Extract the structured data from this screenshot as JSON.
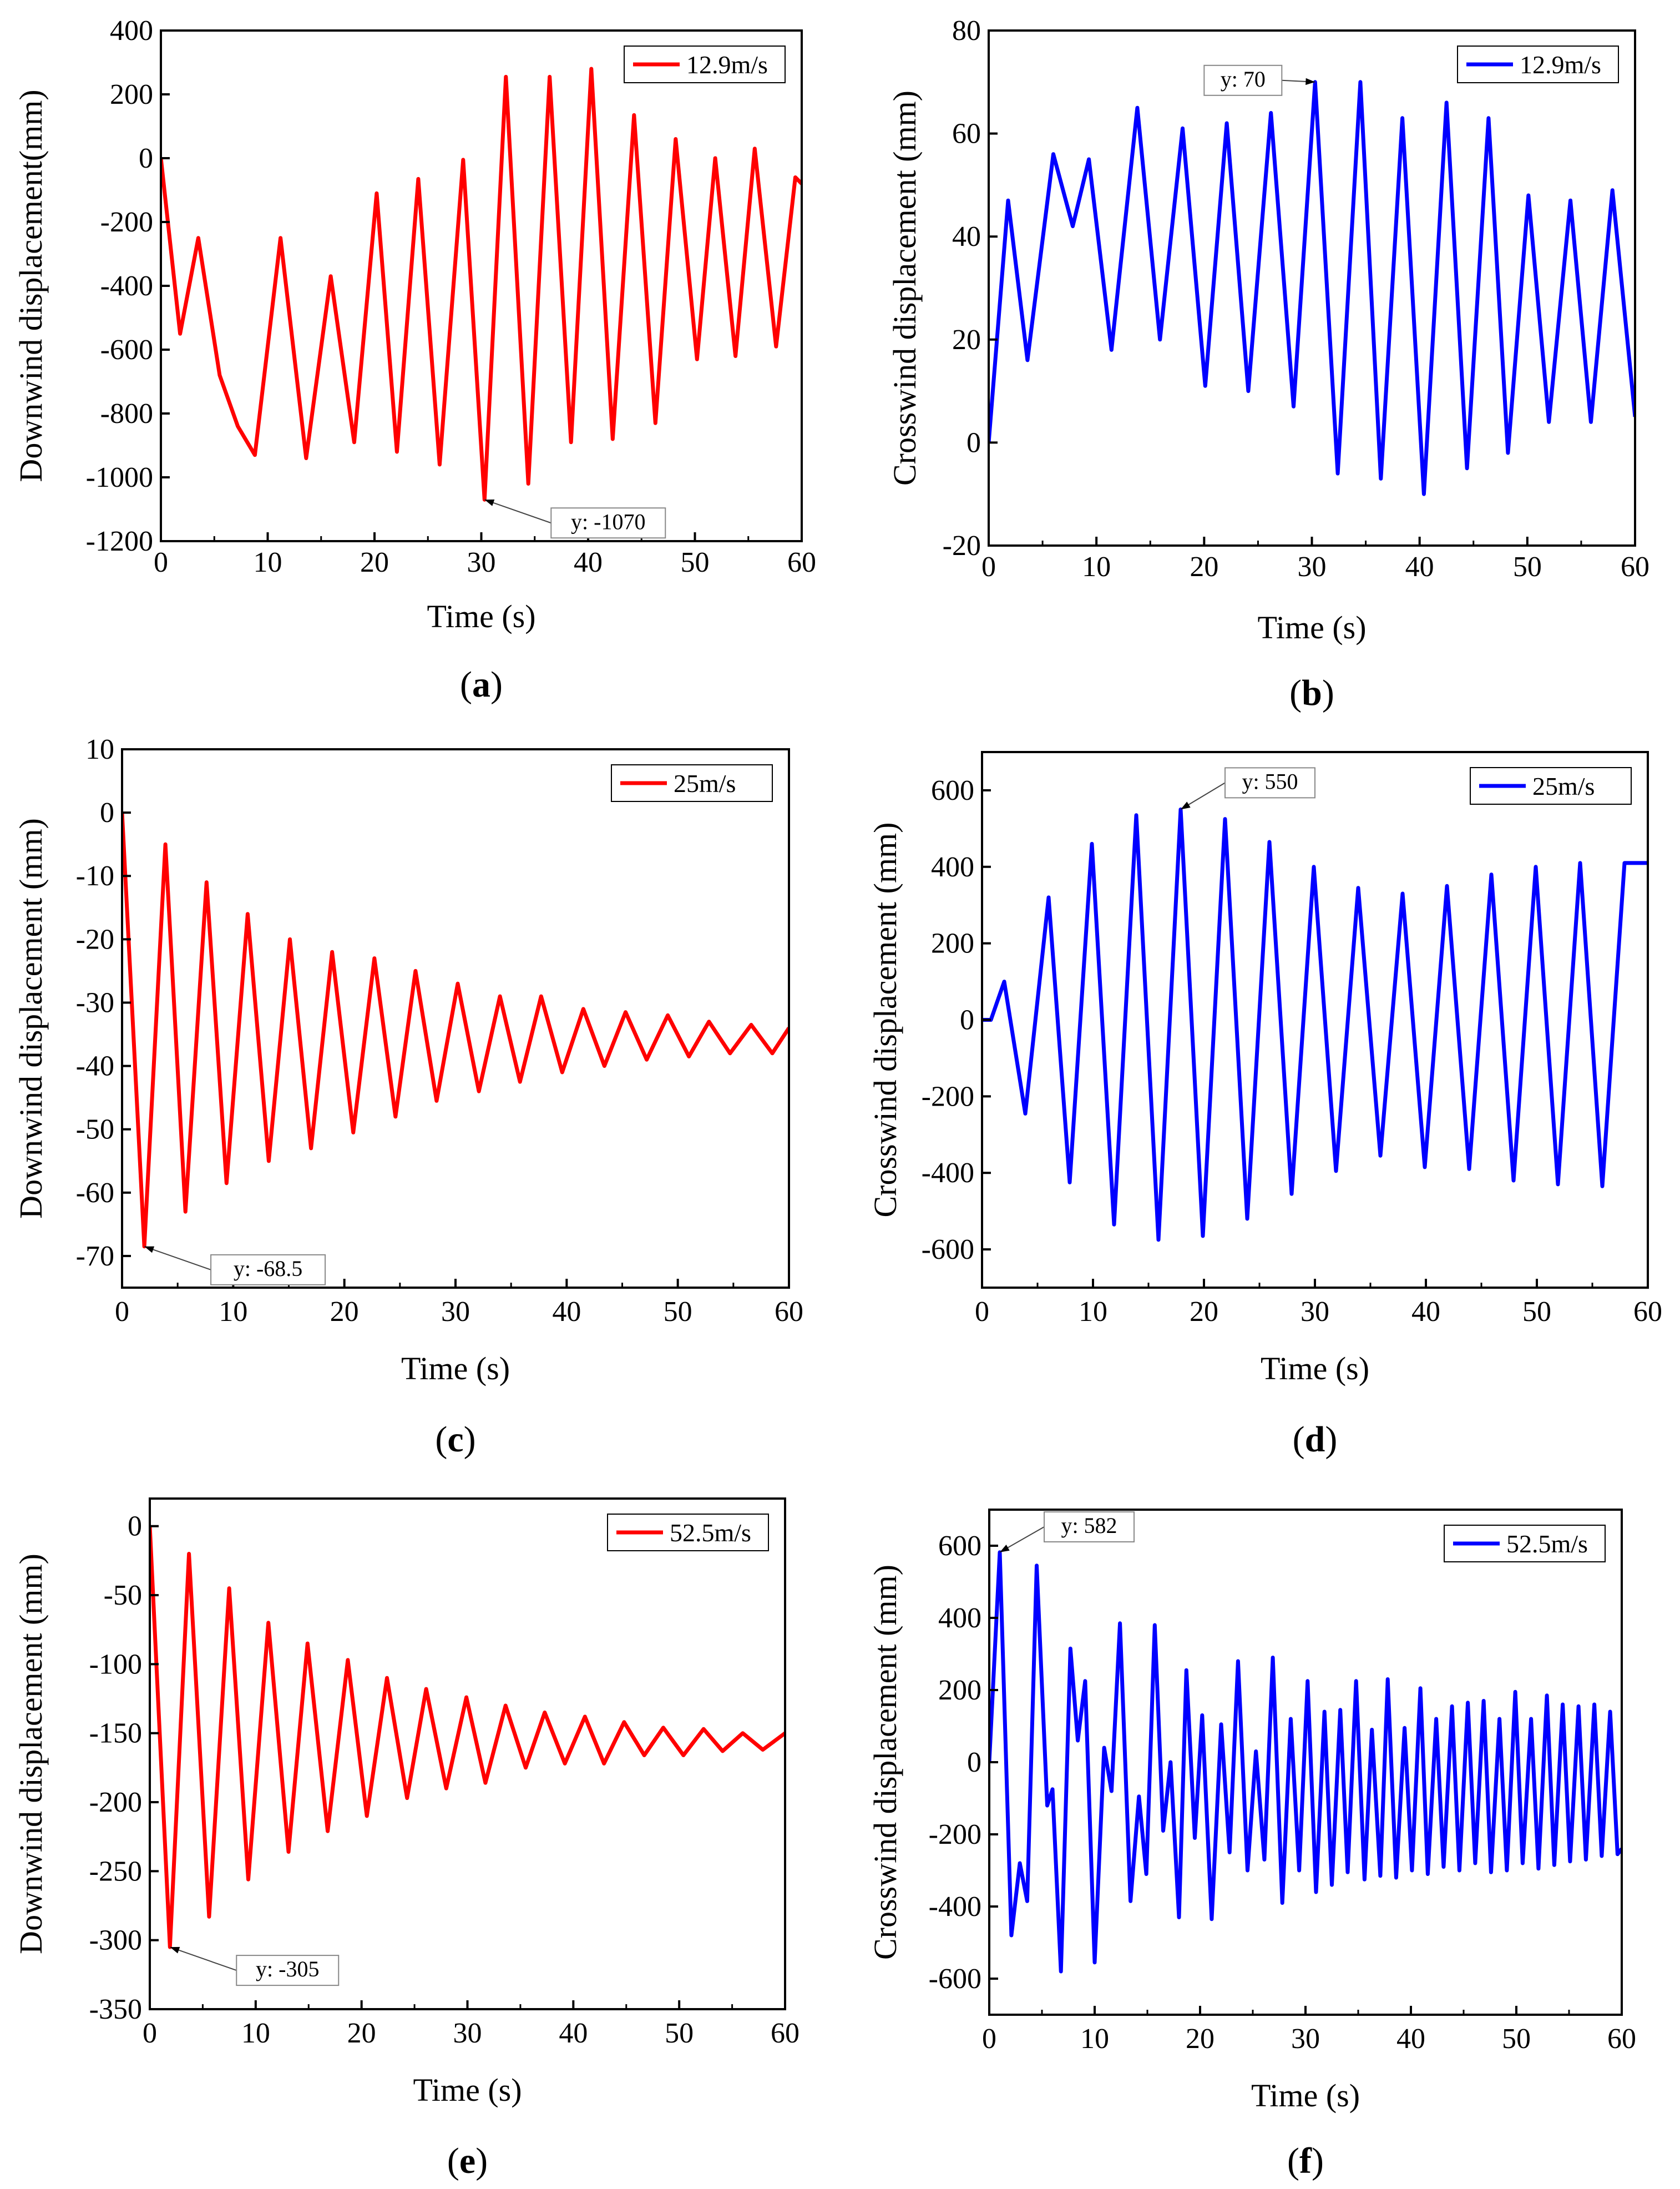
{
  "figure": {
    "caption_prefix": "(",
    "caption_suffix": ")"
  },
  "chart_data": [
    {
      "type": "line",
      "caption": "a",
      "title": "",
      "xlabel": "Time (s)",
      "ylabel": "Downwind displacement(mm)",
      "xlim": [
        0,
        60
      ],
      "ylim": [
        -1200,
        400
      ],
      "xticks": [
        0,
        10,
        20,
        30,
        40,
        50,
        60
      ],
      "yticks": [
        -1200,
        -1000,
        -800,
        -600,
        -400,
        -200,
        0,
        200,
        400
      ],
      "legend": "top-right",
      "grid": false,
      "color": "#ff0000",
      "series": [
        {
          "name": "12.9m/s",
          "x": [
            0,
            1.8,
            3.5,
            5.5,
            7.2,
            8.8,
            11.2,
            13.6,
            15.9,
            18.1,
            20.2,
            22.1,
            24.1,
            26.1,
            28.3,
            30.3,
            32.3,
            34.4,
            36.4,
            38.4,
            40.3,
            42.3,
            44.3,
            46.3,
            48.2,
            50.2,
            51.9,
            53.8,
            55.6,
            57.6,
            59.4,
            60
          ],
          "y": [
            0,
            -550,
            -250,
            -680,
            -840,
            -930,
            -250,
            -940,
            -370,
            -890,
            -110,
            -920,
            -65,
            -960,
            -5,
            -1070,
            255,
            -1020,
            255,
            -890,
            280,
            -880,
            135,
            -830,
            60,
            -630,
            0,
            -620,
            30,
            -590,
            -60,
            -80
          ]
        }
      ],
      "annotations": [
        {
          "text": "y: -1070",
          "x": 30.3,
          "y": -1070,
          "placement": "right-below"
        }
      ]
    },
    {
      "type": "line",
      "caption": "b",
      "title": "",
      "xlabel": "Time (s)",
      "ylabel": "Crosswind displacement (mm)",
      "xlim": [
        0,
        60
      ],
      "ylim": [
        -20,
        80
      ],
      "xticks": [
        0,
        10,
        20,
        30,
        40,
        50,
        60
      ],
      "yticks": [
        -20,
        0,
        20,
        40,
        60,
        80
      ],
      "legend": "top-right",
      "grid": false,
      "color": "#0000ff",
      "series": [
        {
          "name": "12.9m/s",
          "x": [
            0,
            1.8,
            3.6,
            6.0,
            7.8,
            9.3,
            11.4,
            13.8,
            15.9,
            18.0,
            20.1,
            22.1,
            24.1,
            26.2,
            28.3,
            30.3,
            32.4,
            34.5,
            36.4,
            38.4,
            40.4,
            42.5,
            44.4,
            46.4,
            48.2,
            50.1,
            52.0,
            54.0,
            55.9,
            57.9,
            60
          ],
          "y": [
            0,
            47,
            16,
            56,
            42,
            55,
            18,
            65,
            20,
            61,
            11,
            62,
            10,
            64,
            7,
            70,
            -6,
            70,
            -7,
            63,
            -10,
            66,
            -5,
            63,
            -2,
            48,
            4,
            47,
            4,
            49,
            5
          ]
        }
      ],
      "annotations": [
        {
          "text": "y: 70",
          "x": 30.3,
          "y": 70,
          "placement": "left-above"
        }
      ]
    },
    {
      "type": "line",
      "caption": "c",
      "title": "",
      "xlabel": "Time (s)",
      "ylabel": "Downwind displacement (mm)",
      "xlim": [
        0,
        60
      ],
      "ylim": [
        -75,
        10
      ],
      "xticks": [
        0,
        10,
        20,
        30,
        40,
        50,
        60
      ],
      "yticks": [
        -70,
        -60,
        -50,
        -40,
        -30,
        -20,
        -10,
        0,
        10
      ],
      "legend": "top-right",
      "grid": false,
      "color": "#ff0000",
      "series": [
        {
          "name": "25m/s",
          "x": [
            0,
            2.0,
            3.9,
            5.7,
            7.6,
            9.4,
            11.3,
            13.2,
            15.1,
            17.0,
            18.9,
            20.8,
            22.7,
            24.6,
            26.4,
            28.3,
            30.2,
            32.1,
            34.0,
            35.8,
            37.7,
            39.6,
            41.5,
            43.4,
            45.3,
            47.2,
            49.1,
            51.0,
            52.8,
            54.7,
            56.6,
            58.5,
            60
          ],
          "y": [
            0,
            -68.5,
            -5,
            -63,
            -11,
            -58.5,
            -16,
            -55,
            -20,
            -53,
            -22,
            -50.5,
            -23,
            -48,
            -25,
            -45.5,
            -27,
            -44,
            -29,
            -42.5,
            -29,
            -41,
            -31,
            -40,
            -31.5,
            -39,
            -32,
            -38.5,
            -33,
            -38,
            -33.5,
            -38,
            -34
          ]
        }
      ],
      "annotations": [
        {
          "text": "y: -68.5",
          "x": 2.0,
          "y": -68.5,
          "placement": "right-below"
        }
      ]
    },
    {
      "type": "line",
      "caption": "d",
      "title": "",
      "xlabel": "Time (s)",
      "ylabel": "Crosswind displacement (mm)",
      "xlim": [
        0,
        60
      ],
      "ylim": [
        -700,
        700
      ],
      "xticks": [
        0,
        10,
        20,
        30,
        40,
        50,
        60
      ],
      "yticks": [
        -600,
        -400,
        -200,
        0,
        200,
        400,
        600
      ],
      "legend": "top-right",
      "grid": false,
      "color": "#0000ff",
      "series": [
        {
          "name": "25m/s",
          "x": [
            0,
            0.8,
            2.0,
            3.9,
            6.0,
            7.9,
            9.9,
            11.9,
            13.9,
            15.9,
            17.9,
            19.9,
            21.9,
            23.9,
            25.9,
            27.9,
            29.9,
            31.9,
            33.9,
            35.9,
            37.9,
            39.9,
            41.9,
            43.9,
            45.9,
            47.9,
            49.9,
            51.9,
            53.9,
            55.9,
            57.9,
            60
          ],
          "y": [
            0,
            0,
            100,
            -245,
            320,
            -425,
            460,
            -535,
            535,
            -575,
            550,
            -565,
            525,
            -520,
            465,
            -455,
            400,
            -395,
            345,
            -355,
            330,
            -385,
            350,
            -390,
            380,
            -420,
            400,
            -430,
            410,
            -435,
            410,
            410
          ]
        }
      ],
      "annotations": [
        {
          "text": "y: 550",
          "x": 17.9,
          "y": 550,
          "placement": "right-above"
        }
      ]
    },
    {
      "type": "line",
      "caption": "e",
      "title": "",
      "xlabel": "Time (s)",
      "ylabel": "Downwind displacement (mm)",
      "xlim": [
        0,
        60
      ],
      "ylim": [
        -350,
        20
      ],
      "xticks": [
        0,
        10,
        20,
        30,
        40,
        50,
        60
      ],
      "yticks": [
        -350,
        -300,
        -250,
        -200,
        -150,
        -100,
        -50,
        0
      ],
      "legend": "top-right",
      "grid": false,
      "color": "#ff0000",
      "series": [
        {
          "name": "52.5m/s",
          "x": [
            0,
            1.9,
            3.7,
            5.6,
            7.5,
            9.3,
            11.2,
            13.1,
            14.9,
            16.8,
            18.7,
            20.5,
            22.4,
            24.3,
            26.1,
            28.0,
            29.9,
            31.7,
            33.6,
            35.5,
            37.3,
            39.2,
            41.1,
            42.9,
            44.8,
            46.7,
            48.5,
            50.4,
            52.3,
            54.1,
            56.0,
            57.9,
            60
          ],
          "y": [
            0,
            -305,
            -20,
            -283,
            -45,
            -256,
            -70,
            -236,
            -85,
            -221,
            -97,
            -210,
            -110,
            -197,
            -118,
            -190,
            -124,
            -186,
            -130,
            -175,
            -135,
            -172,
            -138,
            -172,
            -142,
            -166,
            -146,
            -166,
            -147,
            -163,
            -150,
            -162,
            -150
          ]
        }
      ],
      "annotations": [
        {
          "text": "y: -305",
          "x": 1.9,
          "y": -305,
          "placement": "right-below"
        }
      ]
    },
    {
      "type": "line",
      "caption": "f",
      "title": "",
      "xlabel": "Time (s)",
      "ylabel": "Crosswind displacement (mm)",
      "xlim": [
        0,
        60
      ],
      "ylim": [
        -700,
        700
      ],
      "xticks": [
        0,
        10,
        20,
        30,
        40,
        50,
        60
      ],
      "yticks": [
        -600,
        -400,
        -200,
        0,
        200,
        400,
        600
      ],
      "legend": "top-right",
      "grid": false,
      "color": "#0000ff",
      "series": [
        {
          "name": "52.5m/s",
          "x": [
            0,
            1.0,
            2.1,
            2.9,
            3.6,
            4.5,
            5.5,
            6.0,
            6.8,
            7.7,
            8.4,
            9.1,
            10.0,
            10.9,
            11.6,
            12.4,
            13.4,
            14.2,
            14.9,
            15.7,
            16.5,
            17.2,
            18.0,
            18.7,
            19.5,
            20.2,
            21.1,
            22.0,
            22.8,
            23.6,
            24.5,
            25.3,
            26.1,
            26.9,
            27.8,
            28.6,
            29.4,
            30.2,
            31.0,
            31.8,
            32.5,
            33.3,
            34.0,
            34.8,
            35.6,
            36.3,
            37.1,
            37.8,
            38.6,
            39.4,
            40.1,
            40.9,
            41.6,
            42.4,
            43.1,
            43.9,
            44.6,
            45.4,
            46.1,
            46.9,
            47.6,
            48.4,
            49.1,
            49.9,
            50.6,
            51.4,
            52.1,
            52.9,
            53.6,
            54.4,
            55.1,
            55.9,
            56.6,
            57.4,
            58.1,
            58.9,
            59.6,
            60
          ],
          "y": [
            0,
            582,
            -480,
            -280,
            -385,
            545,
            -120,
            -75,
            -580,
            315,
            60,
            225,
            -555,
            40,
            -80,
            385,
            -385,
            -95,
            -310,
            380,
            -190,
            0,
            -430,
            255,
            -210,
            130,
            -435,
            105,
            -250,
            280,
            -300,
            30,
            -270,
            290,
            -390,
            120,
            -300,
            225,
            -360,
            140,
            -340,
            145,
            -305,
            225,
            -325,
            90,
            -315,
            230,
            -320,
            95,
            -300,
            205,
            -310,
            120,
            -290,
            155,
            -300,
            165,
            -280,
            170,
            -305,
            120,
            -300,
            195,
            -280,
            120,
            -295,
            185,
            -285,
            160,
            -275,
            155,
            -270,
            160,
            -260,
            140,
            -255,
            -240
          ]
        }
      ],
      "annotations": [
        {
          "text": "y: 582",
          "x": 1.0,
          "y": 582,
          "placement": "right-above"
        }
      ]
    }
  ]
}
